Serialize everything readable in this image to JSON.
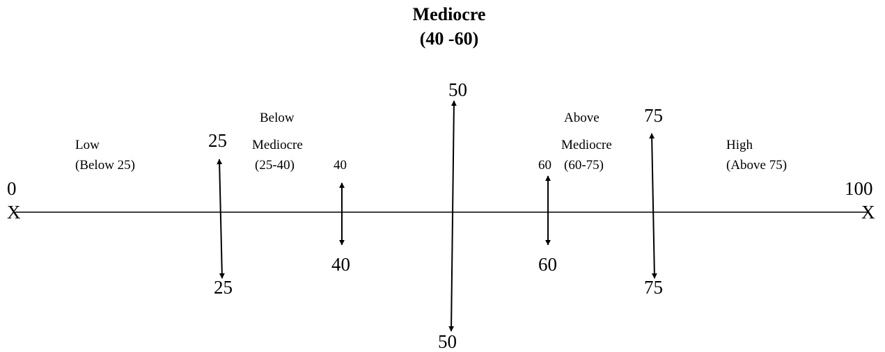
{
  "title": {
    "line1": "Mediocre",
    "line2": "(40 -60)"
  },
  "scale": {
    "start_label": "0",
    "end_label": "100",
    "left_marker": "X",
    "right_marker": "X"
  },
  "zones": {
    "low": {
      "line1": "Low",
      "line2": "(Below 25)"
    },
    "below_mediocre": {
      "line1": "Below",
      "line2": "Mediocre",
      "line3": "(25-40)"
    },
    "above_mediocre": {
      "line1": "Above",
      "line2": "Mediocre",
      "line3": "(60-75)"
    },
    "high": {
      "line1": "High",
      "line2": "(Above 75)"
    }
  },
  "markers": [
    {
      "value": 25,
      "top_label": "25",
      "bottom_label": "25"
    },
    {
      "value": 40,
      "top_label": "40",
      "bottom_label": "40"
    },
    {
      "value": 50,
      "top_label": "50",
      "bottom_label": "50"
    },
    {
      "value": 60,
      "top_label": "60",
      "bottom_label": "60"
    },
    {
      "value": 75,
      "top_label": "75",
      "bottom_label": "75"
    }
  ],
  "colors": {
    "line": "#000000",
    "text": "#000000",
    "background": "#ffffff"
  }
}
